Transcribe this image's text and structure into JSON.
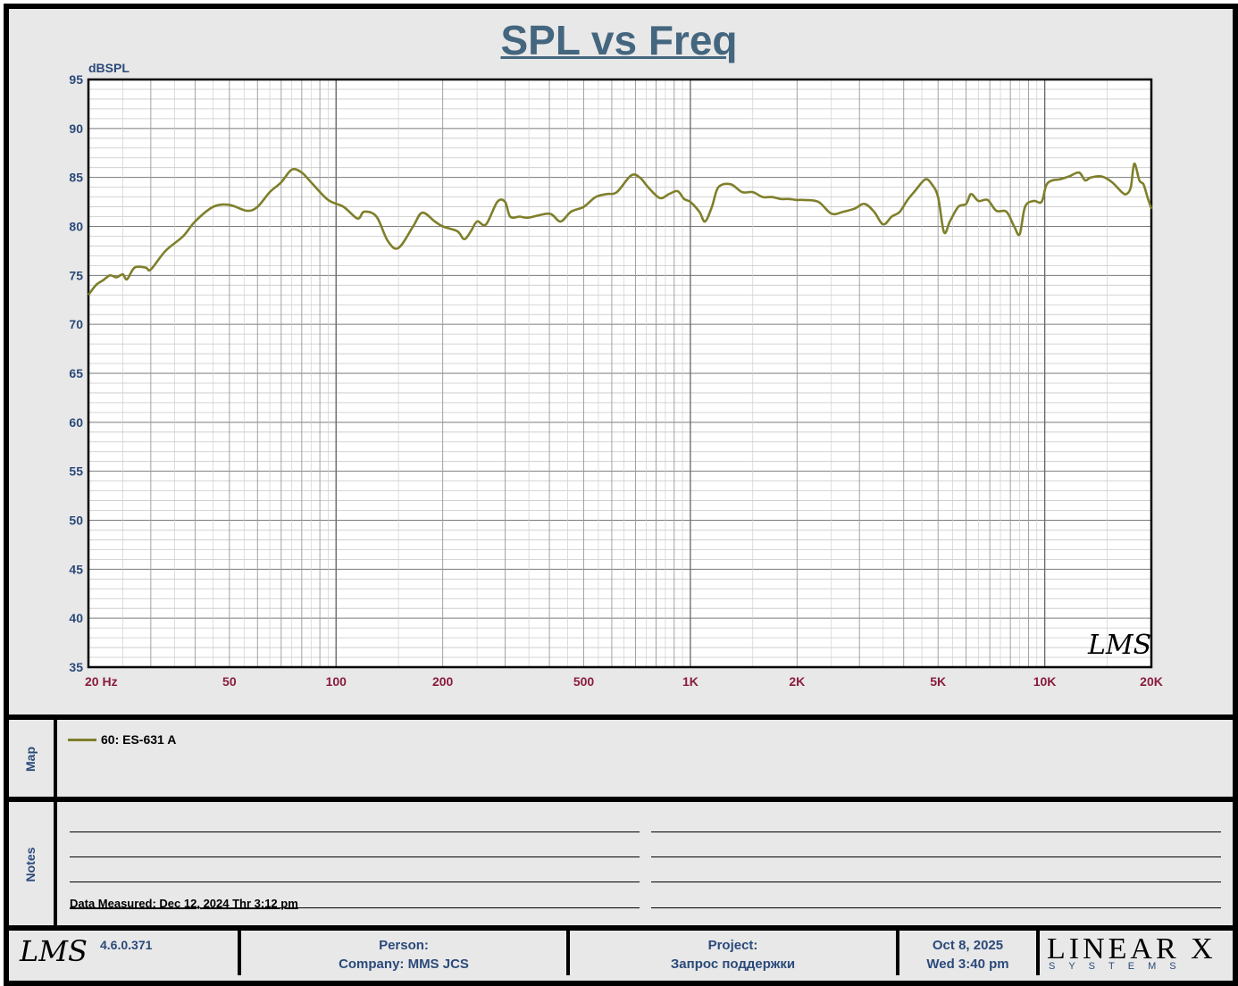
{
  "chart_data": {
    "type": "line",
    "title": "SPL vs Freq",
    "ylabel": "dBSPL",
    "xscale": "log",
    "xlim": [
      20,
      20000
    ],
    "ylim": [
      35,
      95
    ],
    "yticks": [
      35,
      40,
      45,
      50,
      55,
      60,
      65,
      70,
      75,
      80,
      85,
      90,
      95
    ],
    "xtick_labels": [
      {
        "value": 20,
        "label": "20  Hz"
      },
      {
        "value": 50,
        "label": "50"
      },
      {
        "value": 100,
        "label": "100"
      },
      {
        "value": 200,
        "label": "200"
      },
      {
        "value": 500,
        "label": "500"
      },
      {
        "value": 1000,
        "label": "1K"
      },
      {
        "value": 2000,
        "label": "2K"
      },
      {
        "value": 5000,
        "label": "5K"
      },
      {
        "value": 10000,
        "label": "10K"
      },
      {
        "value": 20000,
        "label": "20K"
      }
    ],
    "grid": true,
    "series": [
      {
        "name": "60: ES-631 A",
        "color": "#7f7f2a",
        "points": [
          [
            20,
            73
          ],
          [
            21,
            74
          ],
          [
            22,
            74.5
          ],
          [
            23,
            75
          ],
          [
            24,
            74.8
          ],
          [
            25,
            75.1
          ],
          [
            25.7,
            74.6
          ],
          [
            27,
            75.8
          ],
          [
            29,
            75.8
          ],
          [
            30,
            75.6
          ],
          [
            33,
            77.5
          ],
          [
            37,
            79
          ],
          [
            40,
            80.5
          ],
          [
            45,
            82
          ],
          [
            50,
            82.2
          ],
          [
            56,
            81.6
          ],
          [
            60,
            82
          ],
          [
            65,
            83.5
          ],
          [
            70,
            84.5
          ],
          [
            75,
            85.8
          ],
          [
            80,
            85.5
          ],
          [
            85,
            84.5
          ],
          [
            95,
            82.7
          ],
          [
            105,
            82
          ],
          [
            115,
            80.8
          ],
          [
            120,
            81.5
          ],
          [
            130,
            81
          ],
          [
            140,
            78.5
          ],
          [
            150,
            77.8
          ],
          [
            165,
            80
          ],
          [
            175,
            81.4
          ],
          [
            190,
            80.5
          ],
          [
            200,
            80
          ],
          [
            220,
            79.5
          ],
          [
            230,
            78.7
          ],
          [
            240,
            79.5
          ],
          [
            250,
            80.5
          ],
          [
            265,
            80.2
          ],
          [
            285,
            82.5
          ],
          [
            300,
            82.5
          ],
          [
            310,
            81
          ],
          [
            330,
            81
          ],
          [
            350,
            80.9
          ],
          [
            400,
            81.3
          ],
          [
            430,
            80.5
          ],
          [
            460,
            81.5
          ],
          [
            500,
            82
          ],
          [
            540,
            83
          ],
          [
            580,
            83.3
          ],
          [
            620,
            83.5
          ],
          [
            680,
            85.2
          ],
          [
            720,
            85
          ],
          [
            760,
            84
          ],
          [
            820,
            82.9
          ],
          [
            870,
            83.3
          ],
          [
            920,
            83.6
          ],
          [
            960,
            82.8
          ],
          [
            1000,
            82.5
          ],
          [
            1060,
            81.5
          ],
          [
            1100,
            80.5
          ],
          [
            1150,
            82
          ],
          [
            1200,
            84
          ],
          [
            1300,
            84.3
          ],
          [
            1400,
            83.5
          ],
          [
            1500,
            83.5
          ],
          [
            1600,
            83
          ],
          [
            1700,
            83
          ],
          [
            1800,
            82.8
          ],
          [
            1900,
            82.8
          ],
          [
            2000,
            82.7
          ],
          [
            2100,
            82.7
          ],
          [
            2300,
            82.5
          ],
          [
            2500,
            81.3
          ],
          [
            2700,
            81.5
          ],
          [
            2900,
            81.8
          ],
          [
            3100,
            82.3
          ],
          [
            3300,
            81.5
          ],
          [
            3500,
            80.2
          ],
          [
            3700,
            81
          ],
          [
            3900,
            81.5
          ],
          [
            4100,
            82.7
          ],
          [
            4300,
            83.6
          ],
          [
            4600,
            84.8
          ],
          [
            4800,
            84.3
          ],
          [
            5000,
            83
          ],
          [
            5200,
            79.4
          ],
          [
            5400,
            80.5
          ],
          [
            5700,
            82
          ],
          [
            6000,
            82.3
          ],
          [
            6200,
            83.3
          ],
          [
            6500,
            82.6
          ],
          [
            6900,
            82.7
          ],
          [
            7300,
            81.6
          ],
          [
            7800,
            81.5
          ],
          [
            8200,
            80
          ],
          [
            8500,
            79.2
          ],
          [
            8800,
            82
          ],
          [
            9300,
            82.6
          ],
          [
            9800,
            82.5
          ],
          [
            10100,
            84.2
          ],
          [
            10500,
            84.7
          ],
          [
            11000,
            84.8
          ],
          [
            11700,
            85.1
          ],
          [
            12500,
            85.5
          ],
          [
            13000,
            84.7
          ],
          [
            13500,
            85
          ],
          [
            14500,
            85.1
          ],
          [
            15500,
            84.5
          ],
          [
            16500,
            83.5
          ],
          [
            17000,
            83.3
          ],
          [
            17500,
            84
          ],
          [
            17900,
            86.4
          ],
          [
            18500,
            84.7
          ],
          [
            19000,
            84.3
          ],
          [
            19500,
            83
          ],
          [
            20000,
            81.8
          ]
        ]
      }
    ]
  },
  "panels": {
    "map_label": "Map",
    "notes_label": "Notes",
    "legend_label": "60: ES-631 A",
    "data_measured": "Data Measured: Dec 12, 2024  Thr  3:12 pm"
  },
  "footer": {
    "version": "4.6.0.371",
    "person_label": "Person:",
    "company": "Company: MMS JCS",
    "project_label": "Project:",
    "project_value": "Запрос поддержки",
    "date": "Oct  8, 2025",
    "day_time": "Wed  3:40 pm",
    "lms_logo": "LMS",
    "linearx_big": "LINEAR X",
    "linearx_small": "SYSTEMS"
  },
  "colors": {
    "title": "#44667f",
    "axis_y_labels": "#2b4a7a",
    "axis_x_labels": "#8a1c3c",
    "curve": "#7f7f2a",
    "plot_bg": "#ffffff",
    "panel_bg": "#e8e8e8"
  }
}
